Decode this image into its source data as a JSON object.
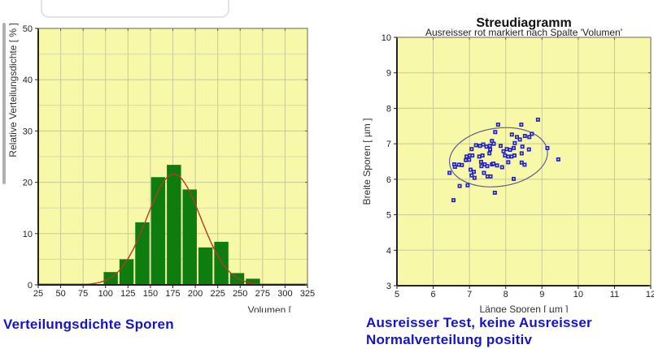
{
  "captions": {
    "left": "Verteilungsdichte Sporen",
    "right_line1": "Ausreisser Test, keine Ausreisser",
    "right_line2": "Normalverteilung positiv"
  },
  "colors": {
    "plot_background": "#f8f8a9",
    "grid_major": "#c9c998",
    "grid_minor": "#d9d9a8",
    "plot_border": "#666655",
    "axis_line": "#222222",
    "bar_fill": "#0e7c0e",
    "fit_curve": "#b23c26",
    "marker_blue": "#2323c8",
    "ellipse_stroke": "#5f5f8f",
    "caption_blue": "#1414cf",
    "tick_text": "#222222",
    "title_text": "#111111"
  },
  "chart_data": [
    {
      "id": "histogram",
      "type": "bar",
      "title": "",
      "xlabel": "Volumen [",
      "ylabel": "Relative Verteilungsdichte [ % ]",
      "xlim": [
        25,
        325
      ],
      "ylim": [
        0,
        50
      ],
      "x_ticks": [
        25,
        50,
        75,
        100,
        125,
        150,
        175,
        200,
        225,
        250,
        275,
        300,
        325
      ],
      "y_ticks": [
        0,
        10,
        20,
        30,
        40,
        50
      ],
      "x_grid_step": 25,
      "y_grid_step": 5,
      "grid": true,
      "legend": false,
      "bin_start": 97,
      "bin_width": 17.6,
      "values": [
        2.5,
        5.0,
        12.2,
        21.0,
        23.4,
        18.6,
        7.3,
        8.4,
        2.3,
        1.2
      ],
      "fit_curve": {
        "shape": "normal",
        "mean": 176,
        "sigma": 30,
        "peak": 21.6
      }
    },
    {
      "id": "scatter",
      "type": "scatter",
      "title": "Streudiagramm",
      "subtitle": "Ausreisser rot markiert nach Spalte 'Volumen'",
      "xlabel": "Länge Sporen [ µm ]",
      "ylabel": "Breite Sporen [ µm ]",
      "xlim": [
        5,
        12
      ],
      "ylim": [
        3,
        10
      ],
      "x_ticks": [
        5,
        6,
        7,
        8,
        9,
        10,
        11,
        12
      ],
      "y_ticks": [
        3,
        4,
        5,
        6,
        7,
        8,
        9,
        10
      ],
      "grid": true,
      "legend": false,
      "points": [
        [
          8.89,
          7.68
        ],
        [
          8.43,
          7.54
        ],
        [
          7.79,
          7.54
        ],
        [
          8.72,
          7.28
        ],
        [
          7.71,
          7.33
        ],
        [
          8.17,
          7.26
        ],
        [
          8.31,
          7.19
        ],
        [
          8.53,
          7.22
        ],
        [
          8.65,
          7.19
        ],
        [
          8.39,
          7.12
        ],
        [
          8.25,
          7.02
        ],
        [
          7.62,
          7.08
        ],
        [
          7.67,
          7.0
        ],
        [
          7.18,
          6.96
        ],
        [
          7.29,
          6.94
        ],
        [
          7.38,
          6.98
        ],
        [
          7.47,
          6.92
        ],
        [
          7.56,
          6.94
        ],
        [
          7.86,
          6.94
        ],
        [
          8.46,
          6.92
        ],
        [
          9.15,
          6.88
        ],
        [
          8.64,
          6.84
        ],
        [
          8.22,
          6.88
        ],
        [
          8.12,
          6.83
        ],
        [
          8.03,
          6.85
        ],
        [
          7.94,
          6.79
        ],
        [
          7.06,
          6.85
        ],
        [
          7.57,
          6.84
        ],
        [
          7.55,
          6.73
        ],
        [
          8.44,
          6.73
        ],
        [
          6.92,
          6.64
        ],
        [
          7.01,
          6.67
        ],
        [
          7.27,
          6.64
        ],
        [
          7.36,
          6.67
        ],
        [
          7.08,
          6.67
        ],
        [
          7.98,
          6.67
        ],
        [
          8.07,
          6.64
        ],
        [
          8.16,
          6.64
        ],
        [
          8.24,
          6.67
        ],
        [
          9.45,
          6.56
        ],
        [
          6.9,
          6.54
        ],
        [
          6.99,
          6.55
        ],
        [
          7.32,
          6.49
        ],
        [
          7.42,
          6.42
        ],
        [
          7.33,
          6.37
        ],
        [
          7.49,
          6.37
        ],
        [
          7.62,
          6.42
        ],
        [
          7.66,
          6.44
        ],
        [
          7.76,
          6.39
        ],
        [
          7.9,
          6.34
        ],
        [
          8.07,
          6.48
        ],
        [
          8.44,
          6.47
        ],
        [
          8.52,
          6.41
        ],
        [
          6.58,
          6.42
        ],
        [
          6.71,
          6.41
        ],
        [
          6.79,
          6.4
        ],
        [
          6.6,
          6.35
        ],
        [
          6.45,
          6.18
        ],
        [
          7.03,
          6.27
        ],
        [
          7.12,
          6.21
        ],
        [
          7.06,
          6.11
        ],
        [
          7.4,
          6.18
        ],
        [
          7.58,
          6.08
        ],
        [
          7.5,
          6.08
        ],
        [
          7.14,
          6.04
        ],
        [
          8.22,
          6.01
        ],
        [
          6.73,
          5.81
        ],
        [
          6.95,
          5.83
        ],
        [
          7.7,
          5.62
        ],
        [
          6.56,
          5.41
        ]
      ],
      "ellipse": {
        "cx": 7.8,
        "cy": 6.62,
        "rx": 1.36,
        "ry": 0.82,
        "rotation_deg": -8
      }
    }
  ]
}
